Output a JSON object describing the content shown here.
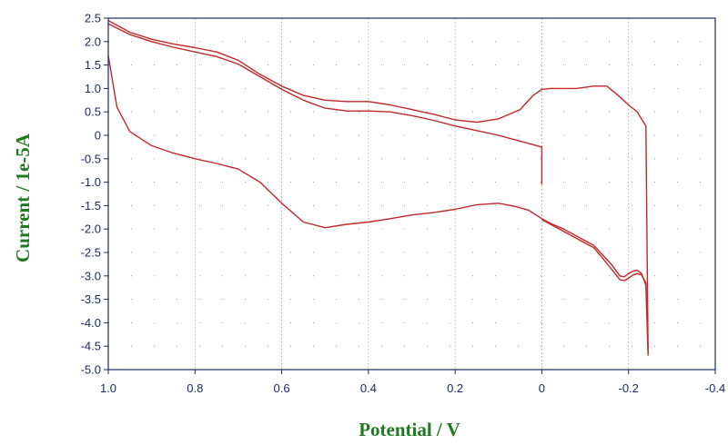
{
  "chart_data": {
    "type": "line",
    "xlabel": "Potential / V",
    "ylabel": "Current / 1e-5A",
    "xlim": [
      1.0,
      -0.4
    ],
    "ylim": [
      -5.0,
      2.5
    ],
    "x_ticks": [
      "1.0",
      "0.8",
      "0.6",
      "0.4",
      "0.2",
      "0",
      "-0.2",
      "-0.4"
    ],
    "y_ticks": [
      "2.5",
      "2.0",
      "1.5",
      "1.0",
      "0.5",
      "0",
      "-0.5",
      "-1.0",
      "-1.5",
      "-2.0",
      "-2.5",
      "-3.0",
      "-3.5",
      "-4.0",
      "-4.5",
      "-5.0"
    ],
    "grid": "dotted",
    "colors": {
      "trace": "#c0282a",
      "axis_title": "#1f7a1f",
      "tick_label": "#1a2a66",
      "grid": "#a0a060"
    },
    "series": [
      {
        "x": [
          0.0,
          0.0,
          0.02,
          0.06,
          0.1,
          0.15,
          0.2,
          0.25,
          0.3,
          0.35,
          0.4,
          0.45,
          0.5,
          0.55,
          0.6,
          0.65,
          0.7,
          0.75,
          0.8,
          0.85,
          0.9,
          0.95,
          1.0
        ],
        "y": [
          -1.05,
          -0.25,
          -0.2,
          -0.1,
          0.0,
          0.1,
          0.2,
          0.32,
          0.42,
          0.5,
          0.52,
          0.52,
          0.58,
          0.75,
          0.98,
          1.25,
          1.52,
          1.68,
          1.78,
          1.88,
          2.0,
          2.15,
          2.38
        ]
      },
      {
        "x": [
          1.0,
          0.95,
          0.9,
          0.85,
          0.8,
          0.75,
          0.7,
          0.65,
          0.6,
          0.55,
          0.5,
          0.45,
          0.4,
          0.35,
          0.3,
          0.25,
          0.2,
          0.15,
          0.1,
          0.05,
          0.02,
          0.0,
          -0.02,
          -0.05,
          -0.08,
          -0.12,
          -0.15,
          -0.18,
          -0.2,
          -0.22,
          -0.24,
          -0.245
        ],
        "y": [
          2.45,
          2.2,
          2.05,
          1.95,
          1.87,
          1.78,
          1.6,
          1.3,
          1.05,
          0.85,
          0.75,
          0.72,
          0.72,
          0.65,
          0.55,
          0.45,
          0.33,
          0.28,
          0.35,
          0.55,
          0.85,
          0.98,
          1.0,
          1.0,
          1.0,
          1.05,
          1.05,
          0.82,
          0.65,
          0.5,
          0.2,
          -4.65
        ]
      },
      {
        "x": [
          -0.245,
          -0.24,
          -0.23,
          -0.22,
          -0.21,
          -0.2,
          -0.19,
          -0.18,
          -0.16,
          -0.14,
          -0.12,
          -0.1,
          -0.08,
          -0.05,
          -0.02,
          0.0,
          0.03,
          0.06,
          0.1,
          0.15,
          0.2,
          0.25,
          0.3,
          0.35,
          0.4,
          0.45,
          0.5,
          0.55,
          0.6,
          0.65,
          0.7,
          0.75,
          0.8,
          0.85,
          0.9,
          0.95,
          0.98,
          1.0
        ],
        "y": [
          -4.7,
          -3.2,
          -2.95,
          -2.88,
          -2.9,
          -2.95,
          -3.02,
          -3.0,
          -2.75,
          -2.55,
          -2.35,
          -2.25,
          -2.15,
          -2.0,
          -1.88,
          -1.78,
          -1.6,
          -1.52,
          -1.45,
          -1.48,
          -1.58,
          -1.65,
          -1.7,
          -1.78,
          -1.85,
          -1.9,
          -1.97,
          -1.85,
          -1.45,
          -1.0,
          -0.72,
          -0.6,
          -0.5,
          -0.38,
          -0.22,
          0.08,
          0.6,
          1.7
        ]
      },
      {
        "x": [
          -0.245,
          -0.24,
          -0.23,
          -0.22,
          -0.21,
          -0.2,
          -0.19,
          -0.18,
          -0.16,
          -0.14,
          -0.12,
          -0.1,
          -0.08,
          -0.05,
          -0.02,
          0.0
        ],
        "y": [
          -4.6,
          -3.15,
          -2.98,
          -2.95,
          -2.98,
          -3.05,
          -3.1,
          -3.08,
          -2.85,
          -2.62,
          -2.4,
          -2.3,
          -2.2,
          -2.05,
          -1.9,
          -1.8
        ]
      }
    ]
  }
}
